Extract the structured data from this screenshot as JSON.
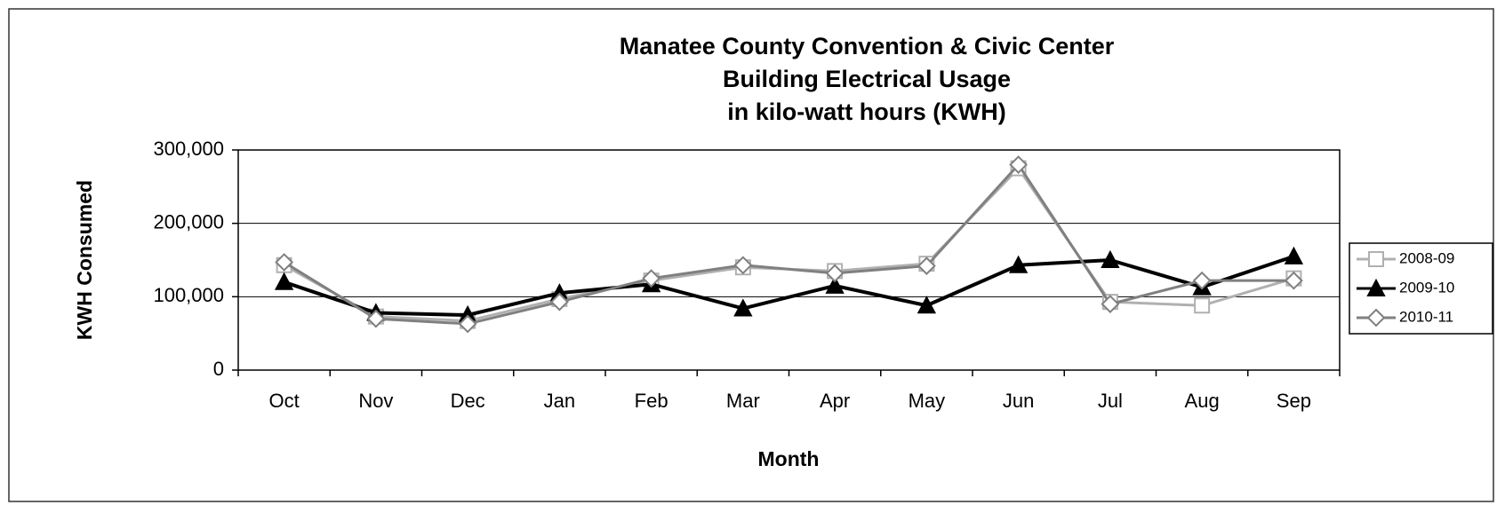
{
  "chart_data": {
    "type": "line",
    "title": [
      "Manatee County Convention & Civic Center",
      "Building Electrical Usage",
      "in kilo-watt hours (KWH)"
    ],
    "x_label": "Month",
    "y_label": "KWH Consumed",
    "categories": [
      "Oct",
      "Nov",
      "Dec",
      "Jan",
      "Feb",
      "Mar",
      "Apr",
      "May",
      "Jun",
      "Jul",
      "Aug",
      "Sep"
    ],
    "series": [
      {
        "name": "2008-09",
        "color": "#b0b0b0",
        "marker": "square",
        "values": [
          143000,
          73000,
          67000,
          97000,
          122000,
          140000,
          135000,
          145000,
          275000,
          93000,
          88000,
          125000
        ]
      },
      {
        "name": "2009-10",
        "color": "#000000",
        "marker": "triangle",
        "values": [
          120000,
          78000,
          75000,
          105000,
          117000,
          84000,
          115000,
          88000,
          143000,
          150000,
          113000,
          155000
        ]
      },
      {
        "name": "2010-11",
        "color": "#808080",
        "marker": "diamond",
        "values": [
          147000,
          70000,
          63000,
          93000,
          125000,
          143000,
          132000,
          142000,
          280000,
          90000,
          122000,
          122000
        ]
      }
    ],
    "ylim": [
      0,
      300000
    ],
    "yticks": [
      0,
      {
        "value": 100000,
        "label": "100,000"
      },
      {
        "value": 200000,
        "label": "200,000"
      },
      {
        "value": 300000,
        "label": "300,000"
      }
    ],
    "grid": true,
    "legend": "right"
  }
}
